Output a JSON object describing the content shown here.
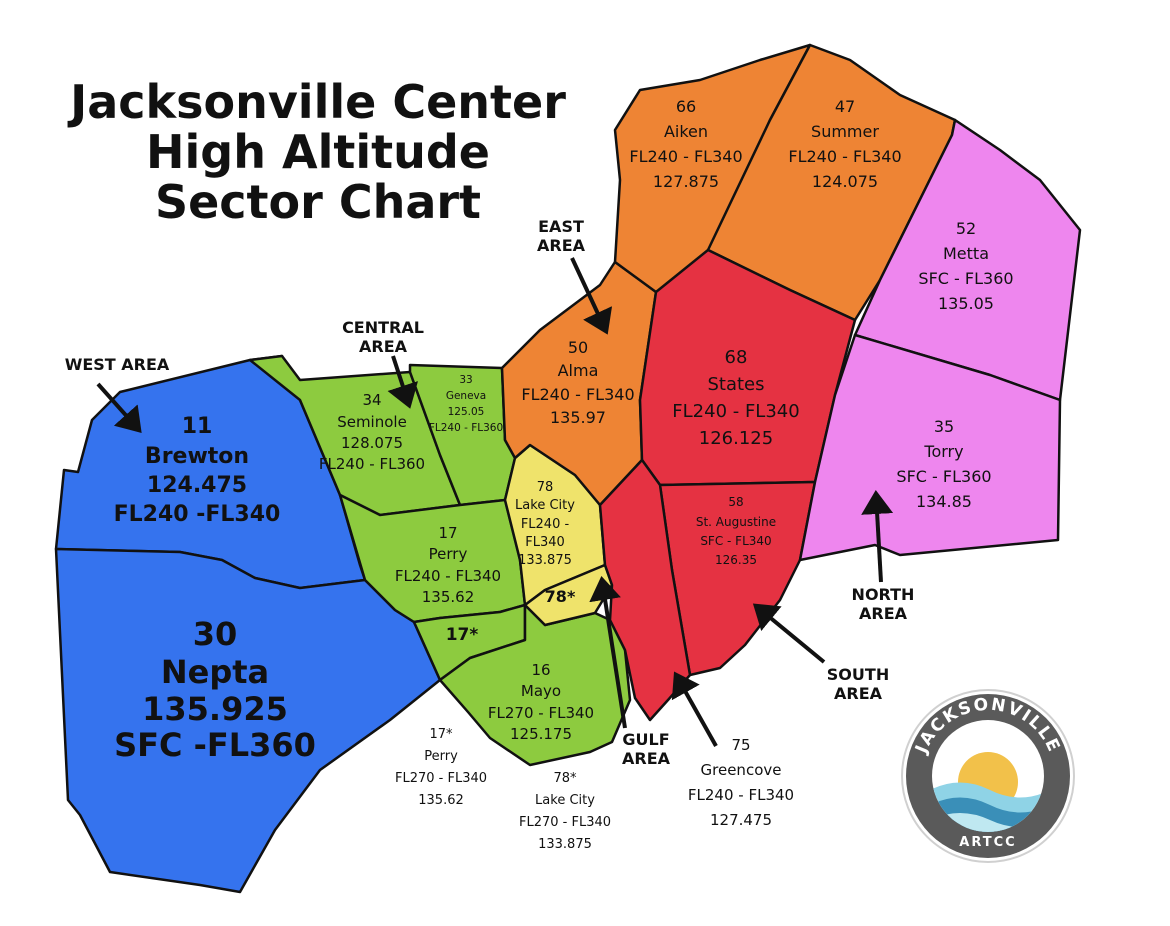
{
  "title_lines": [
    "Jacksonville Center",
    "High Altitude",
    "Sector Chart"
  ],
  "colors": {
    "west": "#3573ee",
    "central": "#8dcb3f",
    "gulf_yellow": "#efe36b",
    "east": "#ee8434",
    "south": "#e53242",
    "north": "#ee86ee",
    "logo_ring": "#5a5a5a"
  },
  "areas": {
    "west": "WEST AREA",
    "central": [
      "CENTRAL",
      "AREA"
    ],
    "east": [
      "EAST",
      "AREA"
    ],
    "gulf": [
      "GULF",
      "AREA"
    ],
    "south": [
      "SOUTH",
      "AREA"
    ],
    "north": [
      "NORTH",
      "AREA"
    ]
  },
  "sectors": {
    "s11": [
      "11",
      "Brewton",
      "124.475",
      "FL240 -FL340"
    ],
    "s30": [
      "30",
      "Nepta",
      "135.925",
      "SFC -FL360"
    ],
    "s34": [
      "34",
      "Seminole",
      "128.075",
      "FL240 - FL360"
    ],
    "s33": [
      "33",
      "Geneva",
      "125.05",
      "FL240 - FL360"
    ],
    "s17": [
      "17",
      "Perry",
      "FL240 - FL340",
      "135.62"
    ],
    "s17star": "17*",
    "s16": [
      "16",
      "Mayo",
      "FL270 - FL340",
      "125.175"
    ],
    "s78": [
      "78",
      "Lake City",
      "FL240 -",
      "FL340",
      "133.875"
    ],
    "s78star": "78*",
    "s50": [
      "50",
      "Alma",
      "FL240 - FL340",
      "135.97"
    ],
    "s66": [
      "66",
      "Aiken",
      "FL240 - FL340",
      "127.875"
    ],
    "s47": [
      "47",
      "Summer",
      "FL240 - FL340",
      "124.075"
    ],
    "s68": [
      "68",
      "States",
      "FL240 - FL340",
      "126.125"
    ],
    "s58": [
      "58",
      "St. Augustine",
      "SFC - FL340",
      "126.35"
    ],
    "s52": [
      "52",
      "Metta",
      "SFC - FL360",
      "135.05"
    ],
    "s35": [
      "35",
      "Torry",
      "SFC - FL360",
      "134.85"
    ]
  },
  "notes": {
    "s17star_note": [
      "17*",
      "Perry",
      "FL270 - FL340",
      "135.62"
    ],
    "s78star_note": [
      "78*",
      "Lake City",
      "FL270 - FL340",
      "133.875"
    ],
    "s75_note": [
      "75",
      "Greencove",
      "FL240 - FL340",
      "127.475"
    ]
  },
  "logo": {
    "top": "JACKSONVILLE",
    "bottom": "ARTCC"
  }
}
